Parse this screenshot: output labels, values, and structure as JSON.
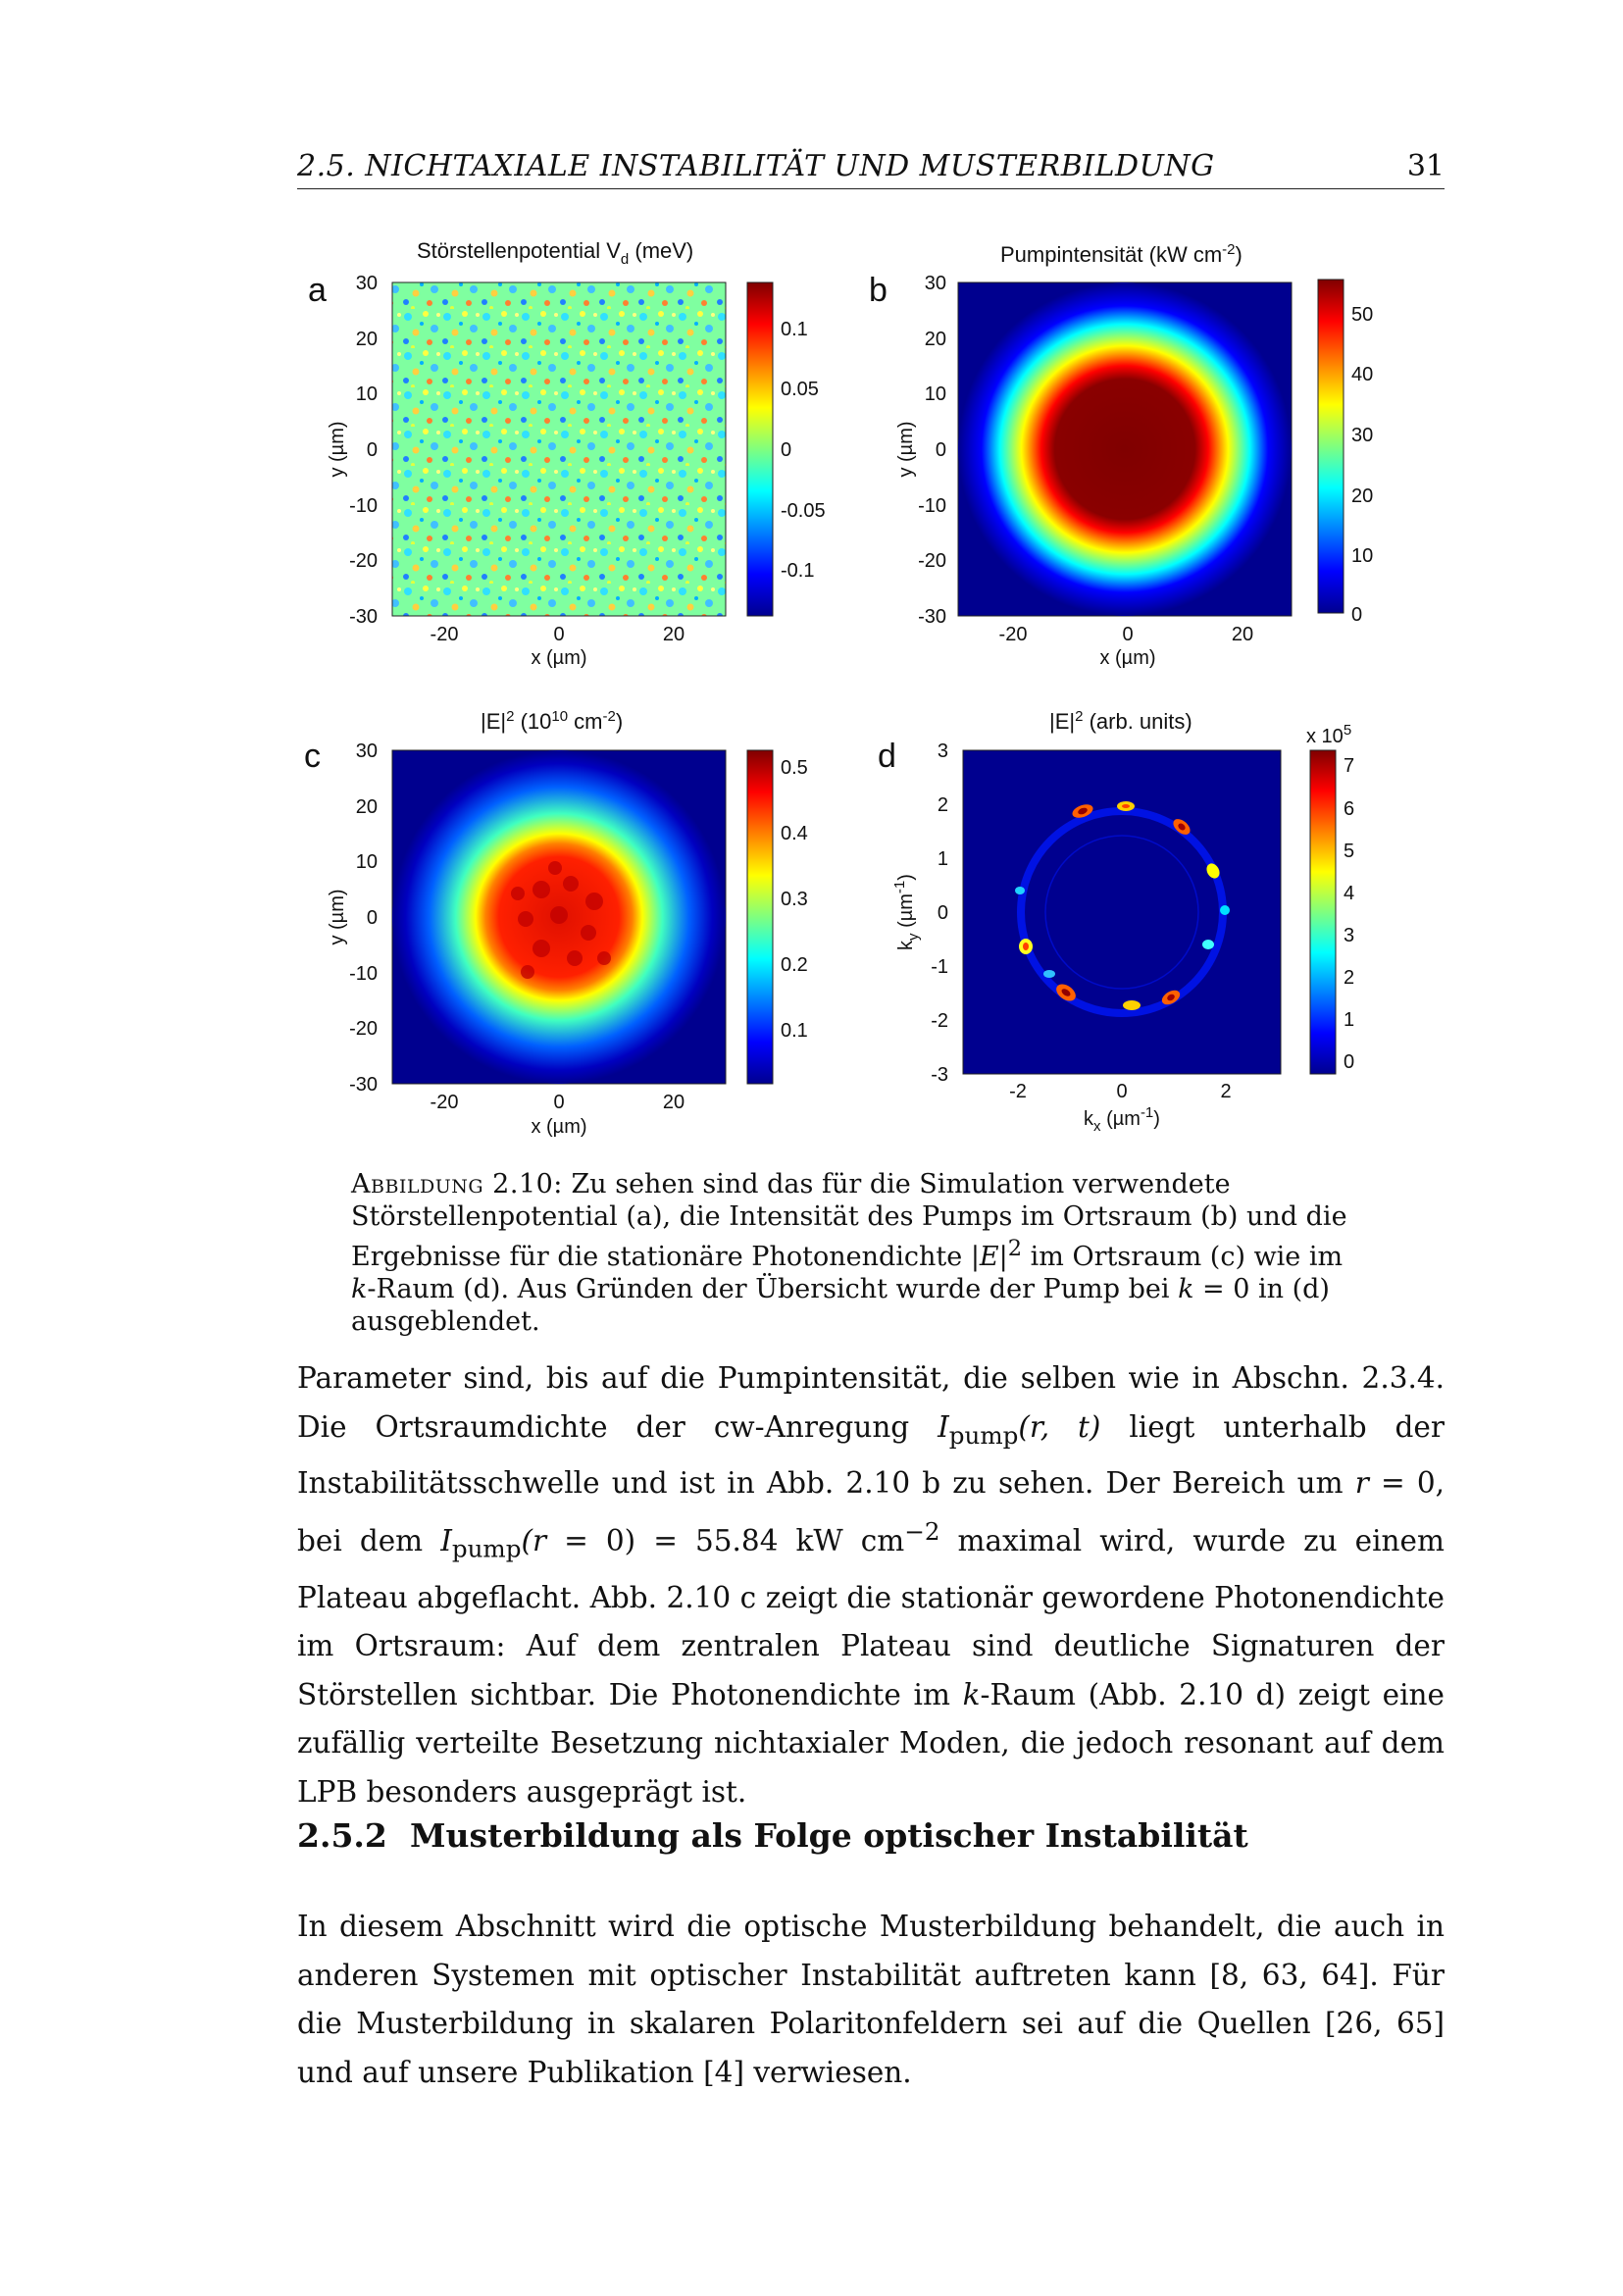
{
  "running_head": {
    "title": "2.5. NICHTAXIALE INSTABILITÄT UND MUSTERBILDUNG",
    "page": "31"
  },
  "panels": {
    "a": {
      "label": "a",
      "title": "Störstellenpotential V",
      "title_sub": "d",
      "title_tail": " (meV)",
      "ylabel": "y (µm)",
      "xlabel": "x (µm)",
      "yticks": [
        "30",
        "20",
        "10",
        "0",
        "-10",
        "-20",
        "-30"
      ],
      "xticks": [
        "-20",
        "0",
        "20"
      ],
      "cbar_ticks": [
        "0.1",
        "0.05",
        "0",
        "-0.05",
        "-0.1"
      ]
    },
    "b": {
      "label": "b",
      "title": "Pumpintensität (kW cm",
      "title_sup": "-2",
      "title_tail": ")",
      "ylabel": "y (µm)",
      "xlabel": "x (µm)",
      "yticks": [
        "30",
        "20",
        "10",
        "0",
        "-10",
        "-20",
        "-30"
      ],
      "xticks": [
        "-20",
        "0",
        "20"
      ],
      "cbar_ticks": [
        "50",
        "40",
        "30",
        "20",
        "10",
        "0"
      ]
    },
    "c": {
      "label": "c",
      "title": "|E|",
      "title_sup": "2",
      "title_mid": " (10",
      "title_sup2": "10",
      "title_tail": " cm",
      "title_sup3": "-2",
      "title_end": ")",
      "ylabel": "y (µm)",
      "xlabel": "x (µm)",
      "yticks": [
        "30",
        "20",
        "10",
        "0",
        "-10",
        "-20",
        "-30"
      ],
      "xticks": [
        "-20",
        "0",
        "20"
      ],
      "cbar_ticks": [
        "0.5",
        "0.4",
        "0.3",
        "0.2",
        "0.1"
      ]
    },
    "d": {
      "label": "d",
      "title": "|E|",
      "title_sup": "2",
      "title_tail": " (arb. units)",
      "ylabel_main": "k",
      "ylabel_sub": "y",
      "ylabel_tail": " (µm",
      "ylabel_sup": "-1",
      "ylabel_end": ")",
      "xlabel_main": "k",
      "xlabel_sub": "x",
      "xlabel_tail": " (µm",
      "xlabel_sup": "-1",
      "xlabel_end": ")",
      "yticks": [
        "3",
        "2",
        "1",
        "0",
        "-1",
        "-2",
        "-3"
      ],
      "xticks": [
        "-2",
        "0",
        "2"
      ],
      "cbar_ticks": [
        "7",
        "6",
        "5",
        "4",
        "3",
        "2",
        "1",
        "0"
      ],
      "cbar_scale": "x 10",
      "cbar_scale_sup": "5"
    }
  },
  "caption": {
    "label": "Abbildung 2.10:",
    "text1": " Zu sehen sind das für die Simulation verwendete Störstellenpotential (a), die Intensität des Pumps im Ortsraum (b) und die Ergebnisse für die stationäre Photonendichte ",
    "math1": "|E|",
    "sup1": "2",
    "text2": " im Ortsraum (c) wie im ",
    "math2": "k",
    "text3": "-Raum (d). Aus Gründen der Übersicht wurde der Pump bei ",
    "math3": "k",
    "text4": " = 0 in (d) ausgeblendet."
  },
  "paragraph1": {
    "s1": "Parameter sind, bis auf die Pumpintensität, die selben wie in Abschn. 2.3.4. Die Ortsraumdichte der cw-Anregung ",
    "i1": "I",
    "i1sub": "pump",
    "i1arg": "(r, t)",
    "s2": " liegt unterhalb der Instabilitätsschwelle und ist in Abb. 2.10 b zu sehen. Der Bereich um ",
    "r0": "r",
    "s3": " = 0, bei dem ",
    "i2": "I",
    "i2sub": "pump",
    "i2arg": "(r",
    "s4": " = 0) = 55.84 kW cm",
    "sup": "−2",
    "s5": " maximal wird, wurde zu einem Plateau abgeflacht. Abb. 2.10 c zeigt die stationär gewordene Photonendichte im Ortsraum: Auf dem zentralen Plateau sind deutliche Signaturen der Störstellen sichtbar. Die Photonendichte im ",
    "k": "k",
    "s6": "-Raum (Abb. 2.10 d) zeigt eine zufällig verteilte Besetzung nichtaxialer Moden, die jedoch resonant auf dem LPB besonders ausgeprägt ist."
  },
  "section": {
    "number": "2.5.2",
    "title": "Musterbildung als Folge optischer Instabilität"
  },
  "paragraph2": "In diesem Abschnitt wird die optische Musterbildung behandelt, die auch in anderen Systemen mit optischer Instabilität auftreten kann [8, 63, 64]. Für die Musterbildung in skalaren Polaritonfeldern sei auf die Quellen [26, 65] und auf unsere Publikation [4] verwiesen."
}
